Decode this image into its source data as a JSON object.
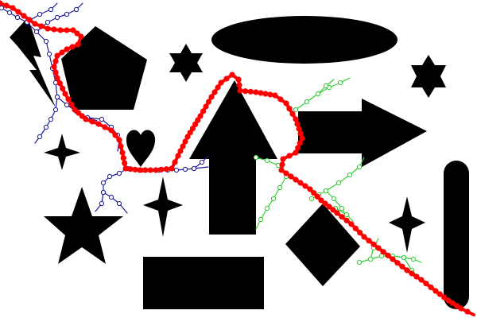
{
  "colors": {
    "background": "#ffffff",
    "shape_fill": "#000000",
    "red_path": "#ff0000",
    "blue_path": "#1a1a9c",
    "green_path": "#33cc33"
  },
  "shapes": [
    "lightning-bolt",
    "pentagon",
    "ellipse",
    "hexagram-left",
    "hexagram-right",
    "heart",
    "up-arrow",
    "right-arrow",
    "four-point-star-left",
    "four-point-star-center",
    "four-point-star-right",
    "five-point-star",
    "rectangle",
    "diamond",
    "capsule"
  ],
  "paths": [
    "red-path",
    "blue-path",
    "green-path"
  ]
}
